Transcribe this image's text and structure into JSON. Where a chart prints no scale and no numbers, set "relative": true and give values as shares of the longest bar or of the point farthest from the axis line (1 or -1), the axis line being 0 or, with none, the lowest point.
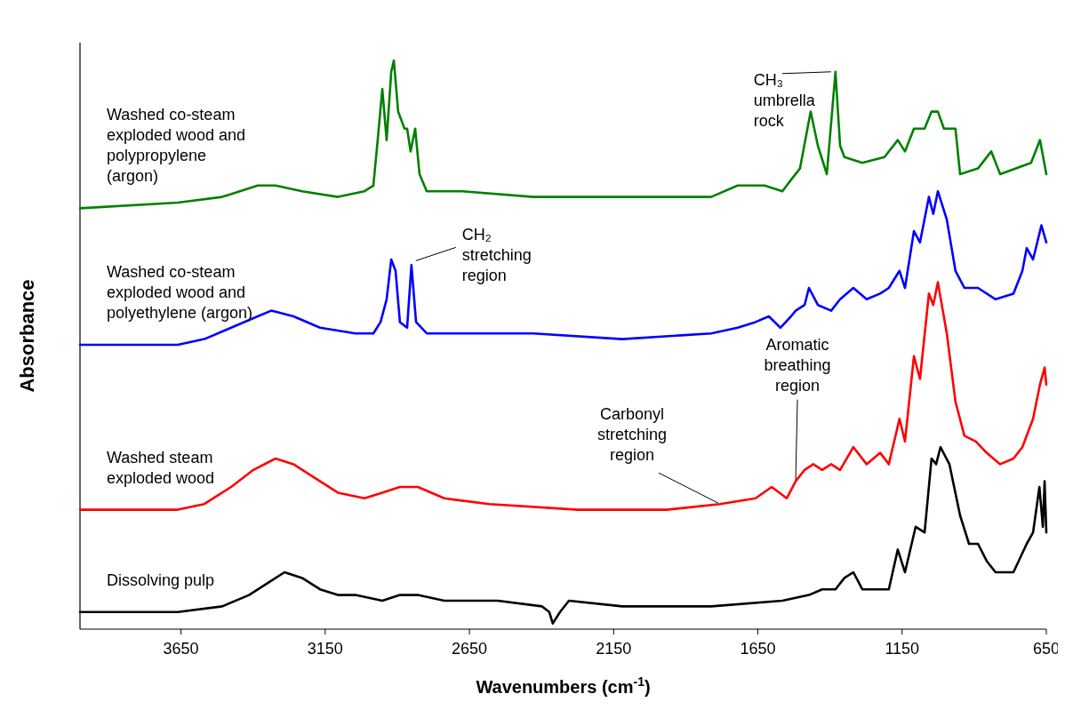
{
  "chart_data": {
    "type": "line",
    "relative": true,
    "xlabel": "Wavenumbers (cm$^{-1}$)",
    "ylabel": "Absorbance",
    "xlim": [
      4000,
      650
    ],
    "xticks": [
      3650,
      3150,
      2650,
      2150,
      1650,
      1150,
      650
    ],
    "grid": false,
    "marker": "none",
    "line_style": "solid",
    "annotations": [
      {
        "text": "CH₃ umbrella rock",
        "x": 1381,
        "y": 0.98
      },
      {
        "text": "CH₂ stretching region",
        "x": 2851,
        "y": 0.64
      },
      {
        "text": "Aromatic breathing region",
        "x": 1519,
        "y": 0.26
      },
      {
        "text": "Carbonyl stretching region",
        "x": 1781,
        "y": 0.22
      }
    ],
    "series": [
      {
        "name": "Washed co-steam exploded wood and polypropylene (argon)",
        "color": "#008000",
        "x": [
          4000,
          3661,
          3507,
          3384,
          3322,
          3230,
          3106,
          3014,
          2983,
          2968,
          2952,
          2937,
          2921,
          2912,
          2897,
          2875,
          2866,
          2854,
          2838,
          2823,
          2798,
          2675,
          2428,
          2120,
          1812,
          1720,
          1627,
          1565,
          1535,
          1504,
          1467,
          1442,
          1411,
          1381,
          1365,
          1350,
          1288,
          1211,
          1165,
          1140,
          1109,
          1072,
          1048,
          1026,
          1005,
          965,
          949,
          887,
          841,
          810,
          703,
          672,
          650
        ],
        "values": [
          0.74,
          0.75,
          0.76,
          0.78,
          0.78,
          0.77,
          0.76,
          0.77,
          0.78,
          0.86,
          0.95,
          0.86,
          0.98,
          1.0,
          0.91,
          0.88,
          0.88,
          0.84,
          0.88,
          0.8,
          0.77,
          0.77,
          0.76,
          0.76,
          0.76,
          0.78,
          0.78,
          0.77,
          0.79,
          0.81,
          0.91,
          0.85,
          0.8,
          0.98,
          0.85,
          0.83,
          0.82,
          0.83,
          0.86,
          0.84,
          0.88,
          0.88,
          0.91,
          0.91,
          0.88,
          0.88,
          0.8,
          0.81,
          0.84,
          0.8,
          0.82,
          0.86,
          0.8
        ]
      },
      {
        "name": "Washed co-steam exploded wood and polyethylene (argon)",
        "color": "#0000ff",
        "x": [
          4000,
          3661,
          3569,
          3476,
          3384,
          3337,
          3260,
          3168,
          3045,
          2983,
          2958,
          2937,
          2921,
          2906,
          2891,
          2866,
          2851,
          2835,
          2798,
          2428,
          2120,
          1812,
          1720,
          1658,
          1612,
          1572,
          1535,
          1519,
          1488,
          1473,
          1442,
          1396,
          1365,
          1319,
          1273,
          1226,
          1196,
          1159,
          1140,
          1109,
          1088,
          1057,
          1042,
          1026,
          995,
          965,
          934,
          887,
          826,
          764,
          733,
          718,
          696,
          667,
          650
        ],
        "values": [
          0.5,
          0.5,
          0.51,
          0.53,
          0.55,
          0.56,
          0.55,
          0.53,
          0.52,
          0.52,
          0.54,
          0.58,
          0.65,
          0.63,
          0.54,
          0.53,
          0.64,
          0.54,
          0.52,
          0.52,
          0.51,
          0.52,
          0.53,
          0.54,
          0.55,
          0.53,
          0.55,
          0.56,
          0.57,
          0.6,
          0.57,
          0.56,
          0.58,
          0.6,
          0.58,
          0.59,
          0.6,
          0.63,
          0.6,
          0.7,
          0.68,
          0.76,
          0.73,
          0.77,
          0.72,
          0.63,
          0.6,
          0.6,
          0.58,
          0.59,
          0.63,
          0.67,
          0.65,
          0.71,
          0.68
        ]
      },
      {
        "name": "Washed steam exploded wood",
        "color": "#ff0000",
        "x": [
          4000,
          3661,
          3569,
          3476,
          3399,
          3322,
          3260,
          3199,
          3106,
          3014,
          2952,
          2891,
          2829,
          2737,
          2582,
          2274,
          1966,
          1781,
          1658,
          1602,
          1550,
          1519,
          1488,
          1458,
          1427,
          1396,
          1365,
          1319,
          1273,
          1226,
          1196,
          1159,
          1140,
          1109,
          1088,
          1057,
          1042,
          1026,
          995,
          965,
          934,
          894,
          857,
          810,
          764,
          733,
          696,
          672,
          656,
          650
        ],
        "values": [
          0.21,
          0.21,
          0.22,
          0.25,
          0.28,
          0.3,
          0.29,
          0.27,
          0.24,
          0.23,
          0.24,
          0.25,
          0.25,
          0.23,
          0.22,
          0.21,
          0.21,
          0.22,
          0.23,
          0.25,
          0.23,
          0.26,
          0.28,
          0.29,
          0.28,
          0.29,
          0.28,
          0.32,
          0.29,
          0.31,
          0.29,
          0.37,
          0.33,
          0.48,
          0.44,
          0.59,
          0.57,
          0.61,
          0.52,
          0.4,
          0.34,
          0.33,
          0.31,
          0.29,
          0.3,
          0.32,
          0.37,
          0.43,
          0.46,
          0.43
        ]
      },
      {
        "name": "Dissolving pulp",
        "color": "#000000",
        "x": [
          4000,
          3815,
          3661,
          3507,
          3414,
          3353,
          3291,
          3230,
          3168,
          3106,
          3045,
          2952,
          2891,
          2829,
          2737,
          2552,
          2398,
          2373,
          2361,
          2336,
          2305,
          2120,
          1812,
          1565,
          1473,
          1427,
          1381,
          1350,
          1319,
          1288,
          1226,
          1196,
          1165,
          1140,
          1103,
          1072,
          1048,
          1032,
          1017,
          986,
          949,
          918,
          887,
          857,
          826,
          764,
          718,
          696,
          674,
          662,
          656,
          650
        ],
        "values": [
          0.03,
          0.03,
          0.03,
          0.04,
          0.06,
          0.08,
          0.1,
          0.09,
          0.07,
          0.06,
          0.06,
          0.05,
          0.06,
          0.06,
          0.05,
          0.05,
          0.04,
          0.03,
          0.01,
          0.03,
          0.05,
          0.04,
          0.04,
          0.05,
          0.06,
          0.07,
          0.07,
          0.09,
          0.1,
          0.07,
          0.07,
          0.07,
          0.14,
          0.1,
          0.18,
          0.17,
          0.3,
          0.29,
          0.32,
          0.29,
          0.2,
          0.15,
          0.15,
          0.12,
          0.1,
          0.1,
          0.15,
          0.17,
          0.25,
          0.18,
          0.26,
          0.17
        ]
      }
    ]
  }
}
